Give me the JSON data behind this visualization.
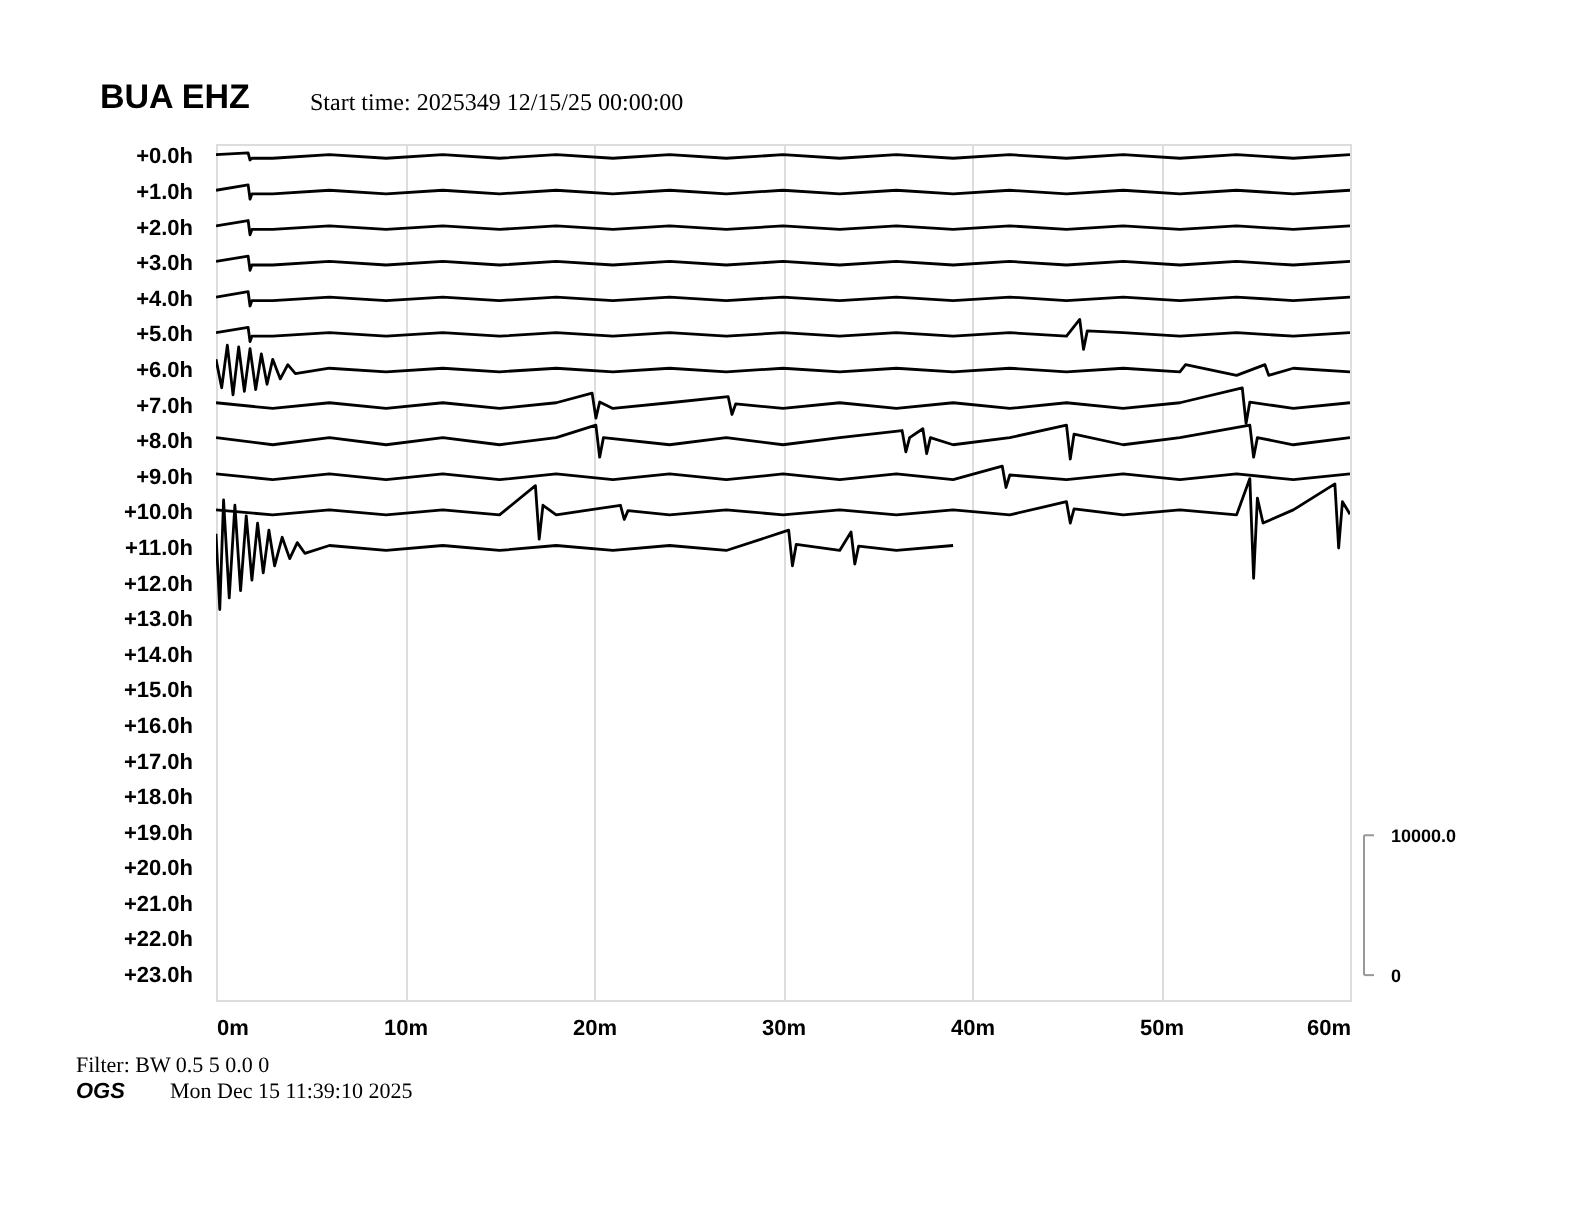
{
  "chart_data": {
    "type": "line",
    "title": "BUA EHZ",
    "subtitle": "Start time: 2025349 12/15/25 00:00:00",
    "annotations": [
      "Filter: BW 0.5 5 0.0 0",
      "OGS",
      "Mon Dec 15 11:39:10 2025"
    ],
    "xlim": [
      0,
      60
    ],
    "xticks": [
      {
        "value": 0,
        "label": "0m"
      },
      {
        "value": 10,
        "label": "10m"
      },
      {
        "value": 20,
        "label": "20m"
      },
      {
        "value": 30,
        "label": "30m"
      },
      {
        "value": 40,
        "label": "40m"
      },
      {
        "value": 50,
        "label": "50m"
      },
      {
        "value": 60,
        "label": "60m"
      }
    ],
    "ylim": [
      23.7,
      -0.35
    ],
    "yticks": [
      {
        "value": 0,
        "label": "+0.0h"
      },
      {
        "value": 1,
        "label": "+1.0h"
      },
      {
        "value": 2,
        "label": "+2.0h"
      },
      {
        "value": 3,
        "label": "+3.0h"
      },
      {
        "value": 4,
        "label": "+4.0h"
      },
      {
        "value": 5,
        "label": "+5.0h"
      },
      {
        "value": 6,
        "label": "+6.0h"
      },
      {
        "value": 7,
        "label": "+7.0h"
      },
      {
        "value": 8,
        "label": "+8.0h"
      },
      {
        "value": 9,
        "label": "+9.0h"
      },
      {
        "value": 10,
        "label": "+10.0h"
      },
      {
        "value": 11,
        "label": "+11.0h"
      },
      {
        "value": 12,
        "label": "+12.0h"
      },
      {
        "value": 13,
        "label": "+13.0h"
      },
      {
        "value": 14,
        "label": "+14.0h"
      },
      {
        "value": 15,
        "label": "+15.0h"
      },
      {
        "value": 16,
        "label": "+16.0h"
      },
      {
        "value": 17,
        "label": "+17.0h"
      },
      {
        "value": 18,
        "label": "+18.0h"
      },
      {
        "value": 19,
        "label": "+19.0h"
      },
      {
        "value": 20,
        "label": "+20.0h"
      },
      {
        "value": 21,
        "label": "+21.0h"
      },
      {
        "value": 22,
        "label": "+22.0h"
      },
      {
        "value": 23,
        "label": "+23.0h"
      }
    ],
    "y2lim": [
      -1780,
      59430
    ],
    "y2ticks": [
      0,
      {
        "value": 10000,
        "label": "10000.0"
      }
    ],
    "grid": "x",
    "legend": false,
    "marker": "none",
    "line_style": "solid",
    "series": [
      {
        "color": "#000000",
        "x": [
          0,
          1.7,
          1.8,
          1.9,
          3,
          6,
          9,
          12,
          15,
          18,
          21,
          24,
          27,
          30,
          33,
          36,
          39,
          42,
          45,
          48,
          51,
          54,
          57,
          60
        ],
        "values": [
          -0.05,
          -0.1,
          0.1,
          0.05,
          0.05,
          -0.05,
          0.05,
          -0.05,
          0.05,
          -0.05,
          0.05,
          -0.05,
          0.05,
          -0.05,
          0.05,
          -0.05,
          0.05,
          -0.05,
          0.05,
          -0.05,
          0.05,
          -0.05,
          0.05,
          -0.05
        ]
      },
      {
        "color": "#000000",
        "x": [
          0,
          1.7,
          1.8,
          1.9,
          3,
          6,
          9,
          12,
          15,
          18,
          21,
          24,
          27,
          30,
          33,
          36,
          39,
          42,
          45,
          48,
          51,
          54,
          57,
          60
        ],
        "values": [
          0.95,
          0.8,
          1.2,
          1.05,
          1.05,
          0.95,
          1.05,
          0.95,
          1.05,
          0.95,
          1.05,
          0.95,
          1.05,
          0.95,
          1.05,
          0.95,
          1.05,
          0.95,
          1.05,
          0.95,
          1.05,
          0.95,
          1.05,
          0.95
        ]
      },
      {
        "color": "#000000",
        "x": [
          0,
          1.7,
          1.8,
          1.9,
          3,
          6,
          9,
          12,
          15,
          18,
          21,
          24,
          27,
          30,
          33,
          36,
          39,
          42,
          45,
          48,
          51,
          54,
          57,
          60
        ],
        "values": [
          1.95,
          1.8,
          2.2,
          2.05,
          2.05,
          1.95,
          2.05,
          1.95,
          2.05,
          1.95,
          2.05,
          1.95,
          2.05,
          1.95,
          2.05,
          1.95,
          2.05,
          1.95,
          2.05,
          1.95,
          2.05,
          1.95,
          2.05,
          1.95
        ]
      },
      {
        "color": "#000000",
        "x": [
          0,
          1.7,
          1.8,
          1.9,
          3,
          6,
          9,
          12,
          15,
          18,
          21,
          24,
          27,
          30,
          33,
          36,
          39,
          42,
          45,
          48,
          51,
          54,
          57,
          60
        ],
        "values": [
          2.95,
          2.8,
          3.2,
          3.05,
          3.05,
          2.95,
          3.05,
          2.95,
          3.05,
          2.95,
          3.05,
          2.95,
          3.05,
          2.95,
          3.05,
          2.95,
          3.05,
          2.95,
          3.05,
          2.95,
          3.05,
          2.95,
          3.05,
          2.95
        ]
      },
      {
        "color": "#000000",
        "x": [
          0,
          1.7,
          1.8,
          1.9,
          3,
          6,
          9,
          12,
          15,
          18,
          21,
          24,
          27,
          30,
          33,
          36,
          39,
          42,
          45,
          48,
          51,
          54,
          57,
          60
        ],
        "values": [
          3.95,
          3.8,
          4.2,
          4.05,
          4.05,
          3.95,
          4.05,
          3.95,
          4.05,
          3.95,
          4.05,
          3.95,
          4.05,
          3.95,
          4.05,
          3.95,
          4.05,
          3.95,
          4.05,
          3.95,
          4.05,
          3.95,
          4.05,
          3.95
        ]
      },
      {
        "color": "#000000",
        "x": [
          0,
          1.7,
          1.8,
          1.9,
          3,
          6,
          9,
          12,
          15,
          18,
          21,
          24,
          27,
          30,
          33,
          36,
          39,
          42,
          45,
          45.7,
          45.9,
          46.1,
          48,
          51,
          54,
          57,
          60
        ],
        "values": [
          4.95,
          4.8,
          5.2,
          5.05,
          5.05,
          4.95,
          5.05,
          4.95,
          5.05,
          4.95,
          5.05,
          4.95,
          5.05,
          4.95,
          5.05,
          4.95,
          5.05,
          4.95,
          5.05,
          4.58,
          5.42,
          4.9,
          4.95,
          5.05,
          4.95,
          5.05,
          4.95
        ]
      },
      {
        "color": "#000000",
        "x": [
          0,
          0.3,
          0.6,
          0.9,
          1.2,
          1.5,
          1.8,
          2.1,
          2.4,
          2.7,
          3.0,
          3.4,
          3.8,
          4.2,
          6,
          9,
          12,
          15,
          18,
          21,
          24,
          27,
          30,
          33,
          36,
          39,
          42,
          45,
          48,
          51,
          51.3,
          54,
          55.5,
          55.7,
          57,
          60
        ],
        "values": [
          5.7,
          6.5,
          5.3,
          6.7,
          5.35,
          6.6,
          5.4,
          6.55,
          5.55,
          6.4,
          5.7,
          6.25,
          5.85,
          6.1,
          5.95,
          6.05,
          5.95,
          6.05,
          5.95,
          6.05,
          5.95,
          6.05,
          5.95,
          6.05,
          5.95,
          6.05,
          5.95,
          6.05,
          5.95,
          6.05,
          5.85,
          6.15,
          5.85,
          6.15,
          5.95,
          6.05
        ]
      },
      {
        "color": "#000000",
        "x": [
          0,
          3,
          6,
          9,
          12,
          15,
          18,
          19.9,
          20.1,
          20.3,
          21,
          24,
          27.1,
          27.3,
          27.5,
          30,
          33,
          36,
          39,
          42,
          45,
          48,
          51,
          54.3,
          54.5,
          54.7,
          57,
          60
        ],
        "values": [
          6.92,
          7.08,
          6.92,
          7.08,
          6.92,
          7.08,
          6.92,
          6.65,
          7.35,
          6.9,
          7.08,
          6.92,
          6.75,
          7.25,
          6.95,
          7.08,
          6.92,
          7.08,
          6.92,
          7.08,
          6.92,
          7.08,
          6.92,
          6.5,
          7.5,
          6.9,
          7.08,
          6.92
        ]
      },
      {
        "color": "#000000",
        "x": [
          0,
          3,
          6,
          9,
          12,
          15,
          18,
          20.1,
          20.3,
          20.5,
          24,
          27,
          30,
          33,
          36.3,
          36.5,
          36.7,
          37.4,
          37.6,
          37.8,
          39,
          42,
          45,
          45.2,
          45.4,
          48,
          51,
          54.7,
          54.9,
          55.1,
          57,
          60
        ],
        "values": [
          7.9,
          8.1,
          7.9,
          8.1,
          7.9,
          8.1,
          7.9,
          7.55,
          8.45,
          7.9,
          8.1,
          7.9,
          8.1,
          7.9,
          7.7,
          8.3,
          7.9,
          7.65,
          8.35,
          7.9,
          8.1,
          7.9,
          7.55,
          8.5,
          7.8,
          8.1,
          7.9,
          7.55,
          8.45,
          7.9,
          8.1,
          7.9
        ]
      },
      {
        "color": "#000000",
        "x": [
          0,
          3,
          6,
          9,
          12,
          15,
          18,
          21,
          24,
          27,
          30,
          33,
          36,
          39,
          41.6,
          41.8,
          42,
          45,
          48,
          51,
          54,
          57,
          60
        ],
        "values": [
          8.92,
          9.08,
          8.92,
          9.08,
          8.92,
          9.08,
          8.92,
          9.08,
          8.92,
          9.08,
          8.92,
          9.08,
          8.92,
          9.08,
          8.7,
          9.3,
          8.95,
          9.08,
          8.92,
          9.08,
          8.92,
          9.08,
          8.92
        ]
      },
      {
        "color": "#000000",
        "x": [
          0,
          3,
          6,
          9,
          12,
          15,
          16.9,
          17.1,
          17.3,
          18,
          21.4,
          21.6,
          21.8,
          24,
          27,
          30,
          33,
          36,
          39,
          42,
          45,
          45.2,
          45.4,
          48,
          51,
          54,
          54.7,
          54.9,
          55.1,
          55.4,
          57,
          59.2,
          59.4,
          59.6,
          60
        ],
        "values": [
          9.93,
          10.07,
          9.93,
          10.07,
          9.93,
          10.07,
          9.25,
          10.75,
          9.8,
          10.07,
          9.8,
          10.2,
          9.95,
          10.07,
          9.93,
          10.07,
          9.93,
          10.07,
          9.93,
          10.07,
          9.7,
          10.3,
          9.9,
          10.07,
          9.93,
          10.07,
          9.05,
          11.85,
          9.6,
          10.3,
          9.93,
          9.2,
          11.0,
          9.7,
          10.05
        ]
      },
      {
        "color": "#000000",
        "x": [
          0,
          0.2,
          0.4,
          0.7,
          1.0,
          1.3,
          1.6,
          1.9,
          2.2,
          2.5,
          2.8,
          3.1,
          3.5,
          3.9,
          4.3,
          4.7,
          6,
          9,
          12,
          15,
          18,
          21,
          24,
          27,
          30.3,
          30.5,
          30.7,
          33,
          33.6,
          33.8,
          34,
          36,
          39
        ],
        "values": [
          10.6,
          12.73,
          9.65,
          12.4,
          9.8,
          12.2,
          10.1,
          11.9,
          10.3,
          11.7,
          10.5,
          11.5,
          10.7,
          11.3,
          10.85,
          11.15,
          10.93,
          11.07,
          10.93,
          11.07,
          10.93,
          11.07,
          10.93,
          11.07,
          10.5,
          11.5,
          10.9,
          11.07,
          10.55,
          11.45,
          10.95,
          11.07,
          10.93
        ]
      }
    ]
  }
}
